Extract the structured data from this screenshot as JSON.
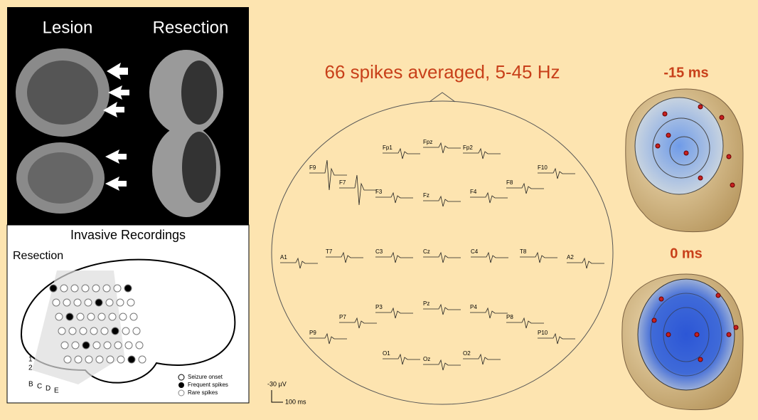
{
  "left_panel": {
    "lesion_label": "Lesion",
    "resection_label": "Resection",
    "invasive_title": "Invasive Recordings",
    "resection_marker": "Resection",
    "legend": [
      "Seizure onset",
      "Frequent spikes",
      "Rare spikes"
    ],
    "grid_rows": [
      "B",
      "C",
      "D",
      "E"
    ],
    "grid_cols": [
      "1",
      "2"
    ]
  },
  "eeg": {
    "title": "66 spikes averaged, 5-45 Hz",
    "electrodes": [
      "Fp1",
      "Fpz",
      "Fp2",
      "F9",
      "F7",
      "F3",
      "Fz",
      "F4",
      "F8",
      "F10",
      "A1",
      "T7",
      "C3",
      "Cz",
      "C4",
      "T8",
      "A2",
      "P7",
      "P3",
      "Pz",
      "P4",
      "P8",
      "P9",
      "P10",
      "O1",
      "Oz",
      "O2"
    ],
    "scale": {
      "amplitude": "-30 µV",
      "time": "100 ms"
    }
  },
  "topomaps": [
    {
      "label": "-15 ms"
    },
    {
      "label": "0 ms"
    }
  ]
}
